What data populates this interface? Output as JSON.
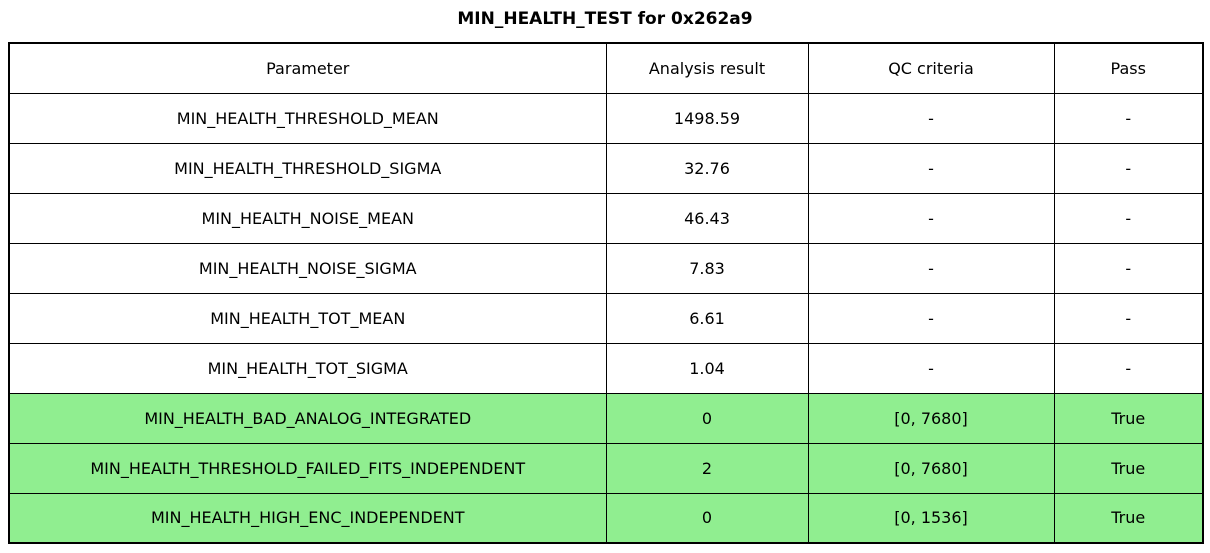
{
  "title": "MIN_HEALTH_TEST for 0x262a9",
  "colors": {
    "background": "#FFFFFF",
    "border": "#000000",
    "text": "#000000",
    "pass_row_bg": "#90EE90"
  },
  "table": {
    "columns": [
      "Parameter",
      "Analysis result",
      "QC criteria",
      "Pass"
    ],
    "rows": [
      {
        "parameter": "MIN_HEALTH_THRESHOLD_MEAN",
        "result": "1498.59",
        "qc": "-",
        "pass": "-",
        "highlight": false
      },
      {
        "parameter": "MIN_HEALTH_THRESHOLD_SIGMA",
        "result": "32.76",
        "qc": "-",
        "pass": "-",
        "highlight": false
      },
      {
        "parameter": "MIN_HEALTH_NOISE_MEAN",
        "result": "46.43",
        "qc": "-",
        "pass": "-",
        "highlight": false
      },
      {
        "parameter": "MIN_HEALTH_NOISE_SIGMA",
        "result": "7.83",
        "qc": "-",
        "pass": "-",
        "highlight": false
      },
      {
        "parameter": "MIN_HEALTH_TOT_MEAN",
        "result": "6.61",
        "qc": "-",
        "pass": "-",
        "highlight": false
      },
      {
        "parameter": "MIN_HEALTH_TOT_SIGMA",
        "result": "1.04",
        "qc": "-",
        "pass": "-",
        "highlight": false
      },
      {
        "parameter": "MIN_HEALTH_BAD_ANALOG_INTEGRATED",
        "result": "0",
        "qc": "[0, 7680]",
        "pass": "True",
        "highlight": true
      },
      {
        "parameter": "MIN_HEALTH_THRESHOLD_FAILED_FITS_INDEPENDENT",
        "result": "2",
        "qc": "[0, 7680]",
        "pass": "True",
        "highlight": true
      },
      {
        "parameter": "MIN_HEALTH_HIGH_ENC_INDEPENDENT",
        "result": "0",
        "qc": "[0, 1536]",
        "pass": "True",
        "highlight": true
      }
    ]
  },
  "chart_data": {
    "type": "table",
    "title": "MIN_HEALTH_TEST for 0x262a9",
    "columns": [
      "Parameter",
      "Analysis result",
      "QC criteria",
      "Pass"
    ],
    "rows": [
      [
        "MIN_HEALTH_THRESHOLD_MEAN",
        "1498.59",
        "-",
        "-"
      ],
      [
        "MIN_HEALTH_THRESHOLD_SIGMA",
        "32.76",
        "-",
        "-"
      ],
      [
        "MIN_HEALTH_NOISE_MEAN",
        "46.43",
        "-",
        "-"
      ],
      [
        "MIN_HEALTH_NOISE_SIGMA",
        "7.83",
        "-",
        "-"
      ],
      [
        "MIN_HEALTH_TOT_MEAN",
        "6.61",
        "-",
        "-"
      ],
      [
        "MIN_HEALTH_TOT_SIGMA",
        "1.04",
        "-",
        "-"
      ],
      [
        "MIN_HEALTH_BAD_ANALOG_INTEGRATED",
        "0",
        "[0, 7680]",
        "True"
      ],
      [
        "MIN_HEALTH_THRESHOLD_FAILED_FITS_INDEPENDENT",
        "2",
        "[0, 7680]",
        "True"
      ],
      [
        "MIN_HEALTH_HIGH_ENC_INDEPENDENT",
        "0",
        "[0, 1536]",
        "True"
      ]
    ],
    "highlighted_rows": [
      6,
      7,
      8
    ],
    "highlight_color": "#90EE90",
    "layout": "title centered above full-width bordered table; all cells center-aligned; black grid lines"
  }
}
